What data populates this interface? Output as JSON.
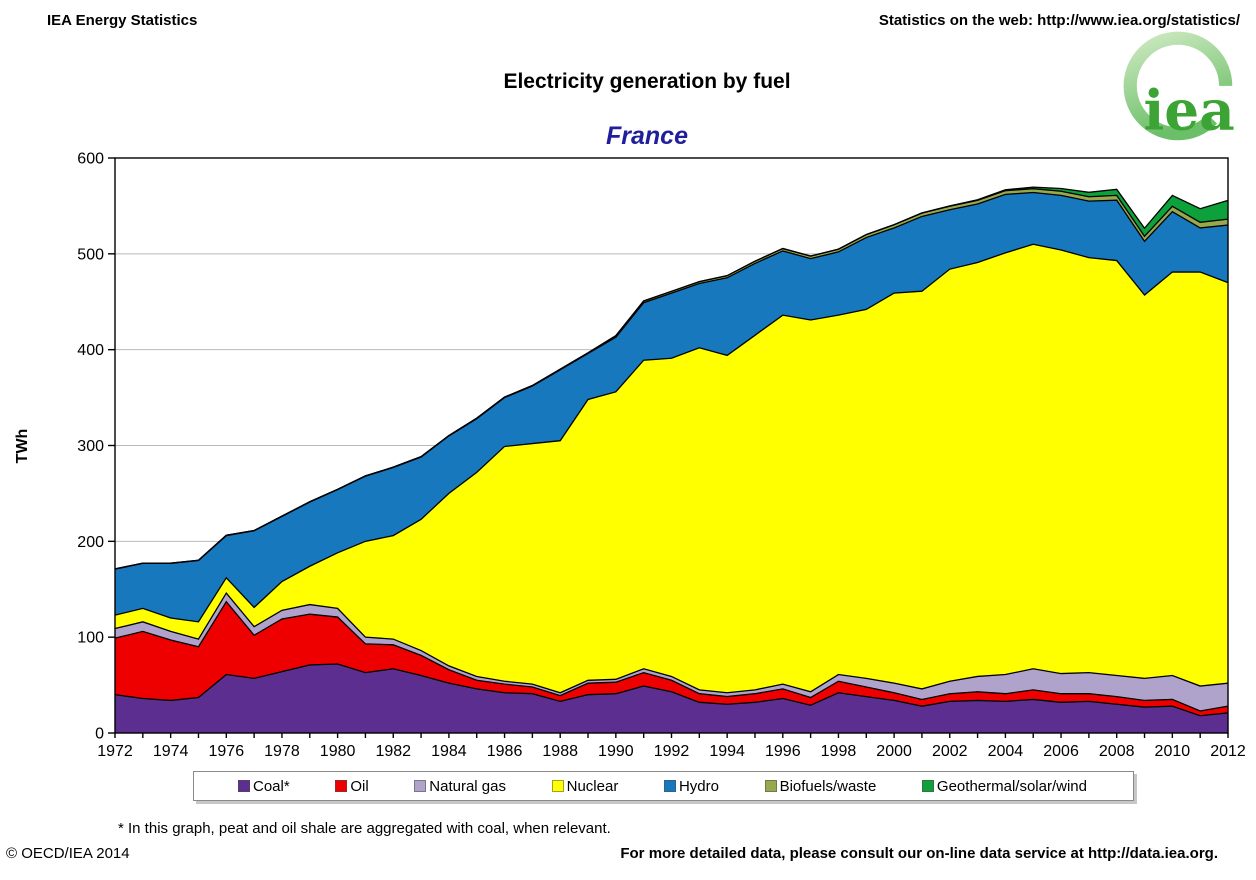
{
  "header": {
    "left_title": "IEA Energy Statistics",
    "right_note": "Statistics on the web: http://www.iea.org/statistics/"
  },
  "title": "Electricity generation by fuel",
  "subtitle": "France",
  "logo": {
    "text": "iea"
  },
  "chart_data": {
    "type": "area",
    "stacked": true,
    "title": "Electricity generation by fuel",
    "region": "France",
    "ylabel": "TWh",
    "ylim": [
      0,
      600
    ],
    "yticks": [
      0,
      100,
      200,
      300,
      400,
      500,
      600
    ],
    "grid": "horizontal",
    "legend_position": "bottom",
    "x": [
      1972,
      1973,
      1974,
      1975,
      1976,
      1977,
      1978,
      1979,
      1980,
      1981,
      1982,
      1983,
      1984,
      1985,
      1986,
      1987,
      1988,
      1989,
      1990,
      1991,
      1992,
      1993,
      1994,
      1995,
      1996,
      1997,
      1998,
      1999,
      2000,
      2001,
      2002,
      2003,
      2004,
      2005,
      2006,
      2007,
      2008,
      2009,
      2010,
      2011,
      2012
    ],
    "xtick_labels": [
      "1972",
      "1974",
      "1976",
      "1978",
      "1980",
      "1982",
      "1984",
      "1986",
      "1988",
      "1990",
      "1992",
      "1994",
      "1996",
      "1998",
      "2000",
      "2002",
      "2004",
      "2006",
      "2008",
      "2010",
      "2012"
    ],
    "series": [
      {
        "name": "Coal*",
        "color": "#5B2E90",
        "values": [
          40,
          36,
          34,
          37,
          61,
          57,
          64,
          71,
          72,
          63,
          67,
          60,
          52,
          46,
          42,
          41,
          33,
          40,
          41,
          49,
          43,
          32,
          30,
          32,
          36,
          29,
          42,
          38,
          34,
          28,
          33,
          34,
          33,
          35,
          32,
          33,
          30,
          27,
          28,
          18,
          21
        ]
      },
      {
        "name": "Oil",
        "color": "#EE0000",
        "values": [
          59,
          70,
          63,
          53,
          76,
          45,
          55,
          53,
          49,
          30,
          25,
          21,
          14,
          9,
          9,
          7,
          6,
          12,
          12,
          14,
          12,
          9,
          8,
          9,
          10,
          8,
          12,
          10,
          8,
          7,
          8,
          9,
          8,
          10,
          9,
          8,
          8,
          7,
          7,
          5,
          7
        ]
      },
      {
        "name": "Natural gas",
        "color": "#AFA3CC",
        "values": [
          10,
          10,
          9,
          8,
          9,
          9,
          9,
          10,
          9,
          7,
          6,
          5,
          4,
          4,
          3,
          3,
          3,
          3,
          3,
          4,
          4,
          4,
          4,
          4,
          5,
          6,
          7,
          9,
          10,
          11,
          13,
          16,
          20,
          22,
          21,
          22,
          22,
          23,
          25,
          26,
          24
        ]
      },
      {
        "name": "Nuclear",
        "color": "#FFFF00",
        "values": [
          14,
          14,
          14,
          18,
          16,
          20,
          30,
          40,
          58,
          100,
          108,
          137,
          180,
          213,
          245,
          251,
          263,
          293,
          300,
          322,
          332,
          357,
          352,
          370,
          385,
          388,
          375,
          385,
          407,
          415,
          430,
          432,
          440,
          443,
          442,
          433,
          433,
          400,
          421,
          432,
          418
        ]
      },
      {
        "name": "Hydro",
        "color": "#1878BE",
        "values": [
          48,
          47,
          57,
          64,
          44,
          80,
          68,
          67,
          66,
          68,
          71,
          65,
          60,
          56,
          51,
          60,
          74,
          48,
          57,
          60,
          68,
          67,
          81,
          75,
          67,
          64,
          66,
          75,
          68,
          78,
          62,
          61,
          61,
          54,
          57,
          59,
          63,
          56,
          63,
          46,
          60
        ]
      },
      {
        "name": "Biofuels/waste",
        "color": "#97A94D",
        "values": [
          0.3,
          0.3,
          0.3,
          0.3,
          0.3,
          0.3,
          0.3,
          0.3,
          0.3,
          0.3,
          0.4,
          0.4,
          0.4,
          0.5,
          0.5,
          0.6,
          0.6,
          0.7,
          1.6,
          1.8,
          1.9,
          2,
          2.2,
          2.3,
          2.5,
          2.6,
          2.8,
          3,
          3.3,
          3.5,
          3.7,
          3.8,
          3.9,
          4,
          4.3,
          4.6,
          5,
          5.3,
          5.6,
          5.9,
          6.2
        ]
      },
      {
        "name": "Geothermal/solar/wind",
        "color": "#0CA13B",
        "values": [
          0,
          0,
          0,
          0,
          0,
          0,
          0,
          0,
          0,
          0,
          0,
          0,
          0,
          0,
          0,
          0,
          0,
          0,
          0,
          0,
          0,
          0,
          0,
          0,
          0.1,
          0.1,
          0.1,
          0.2,
          0.2,
          0.3,
          0.4,
          0.6,
          1,
          1.6,
          2.9,
          4.6,
          6.3,
          8.4,
          11.3,
          14.2,
          19.6
        ]
      }
    ]
  },
  "footnote": "* In this graph, peat and oil shale are aggregated with coal, when relevant.",
  "footer": {
    "copyright": "© OECD/IEA 2014",
    "note": "For more detailed data, please consult our on-line data service at http://data.iea.org."
  }
}
